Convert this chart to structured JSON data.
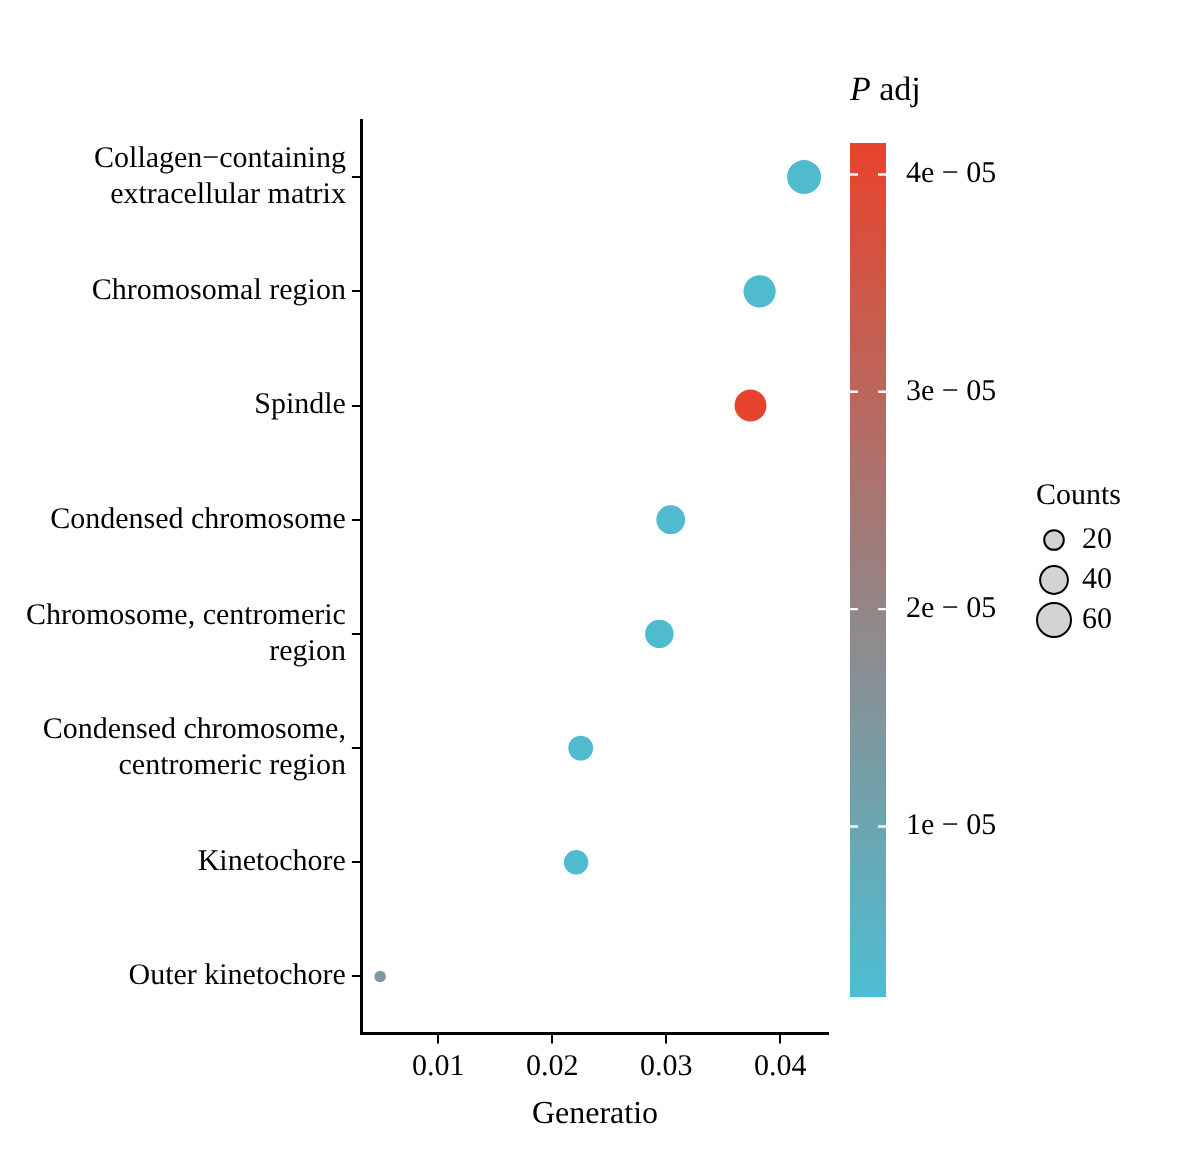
{
  "chart_data": {
    "type": "scatter",
    "orientation": "horizontal",
    "categories": [
      "Collagen−containing extracellular matrix",
      "Chromosomal region",
      "Spindle",
      "Condensed chromosome",
      "Chromosome, centromeric region",
      "Condensed chromosome, centromeric region",
      "Kinetochore",
      "Outer kinetochore"
    ],
    "values": [
      0.0421,
      0.0382,
      0.0374,
      0.0304,
      0.0294,
      0.0225,
      0.0221,
      0.0049
    ],
    "sizes": [
      60,
      54,
      53,
      43,
      42,
      32,
      31,
      7
    ],
    "cvalues": [
      3e-06,
      3e-06,
      4.1e-05,
      3e-06,
      3e-06,
      3e-06,
      3e-06,
      1.4e-05
    ],
    "clim": [
      2.2e-06,
      4.14e-05
    ],
    "cticks": [
      {
        "value": 1e-05,
        "label": "1e − 05"
      },
      {
        "value": 2e-05,
        "label": "2e − 05"
      },
      {
        "value": 3e-05,
        "label": "3e − 05"
      },
      {
        "value": 4e-05,
        "label": "4e − 05"
      }
    ],
    "clabel": "P adj",
    "legend_title": "Counts",
    "size_legend": [
      20,
      40,
      60
    ],
    "xlabel": "Generatio",
    "xlim": [
      0.0033,
      0.0442
    ],
    "xticks": [
      0.01,
      0.02,
      0.03,
      0.04
    ],
    "grid": false
  }
}
